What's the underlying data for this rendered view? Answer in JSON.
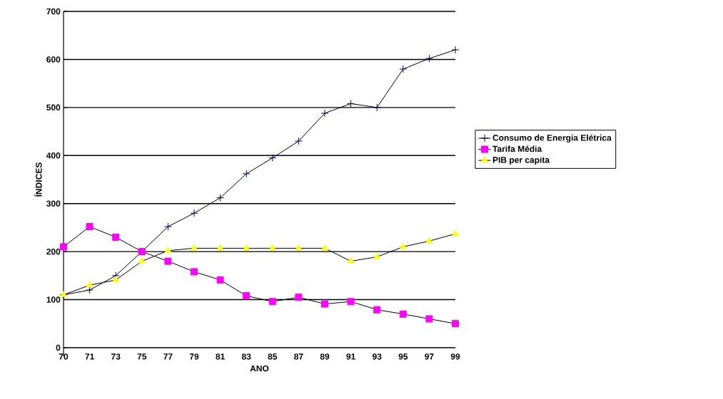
{
  "chart_data": {
    "type": "line",
    "xlabel": "ANO",
    "ylabel": "ÍNDICES",
    "categories": [
      "70",
      "71",
      "73",
      "75",
      "77",
      "79",
      "81",
      "83",
      "85",
      "87",
      "89",
      "91",
      "93",
      "95",
      "97",
      "99"
    ],
    "series": [
      {
        "name": "Consumo de Energia Elétrica",
        "color": "#000080",
        "marker": "cross",
        "values": [
          110,
          120,
          150,
          200,
          252,
          280,
          312,
          362,
          395,
          430,
          488,
          508,
          500,
          580,
          602,
          620
        ]
      },
      {
        "name": "Tarifa Média",
        "color": "#ff00ff",
        "marker": "square",
        "values": [
          210,
          252,
          230,
          200,
          180,
          158,
          141,
          108,
          96,
          105,
          91,
          96,
          79,
          70,
          60,
          50
        ]
      },
      {
        "name": "PIB per capita",
        "color": "#ffff00",
        "marker": "triangle",
        "values": [
          110,
          130,
          141,
          180,
          202,
          207,
          207,
          207,
          207,
          207,
          207,
          180,
          189,
          210,
          222,
          237
        ]
      }
    ],
    "ylim": [
      0,
      700
    ],
    "yticks": [
      0,
      100,
      200,
      300,
      400,
      500,
      600,
      700
    ],
    "grid": "y",
    "legend": "right"
  }
}
